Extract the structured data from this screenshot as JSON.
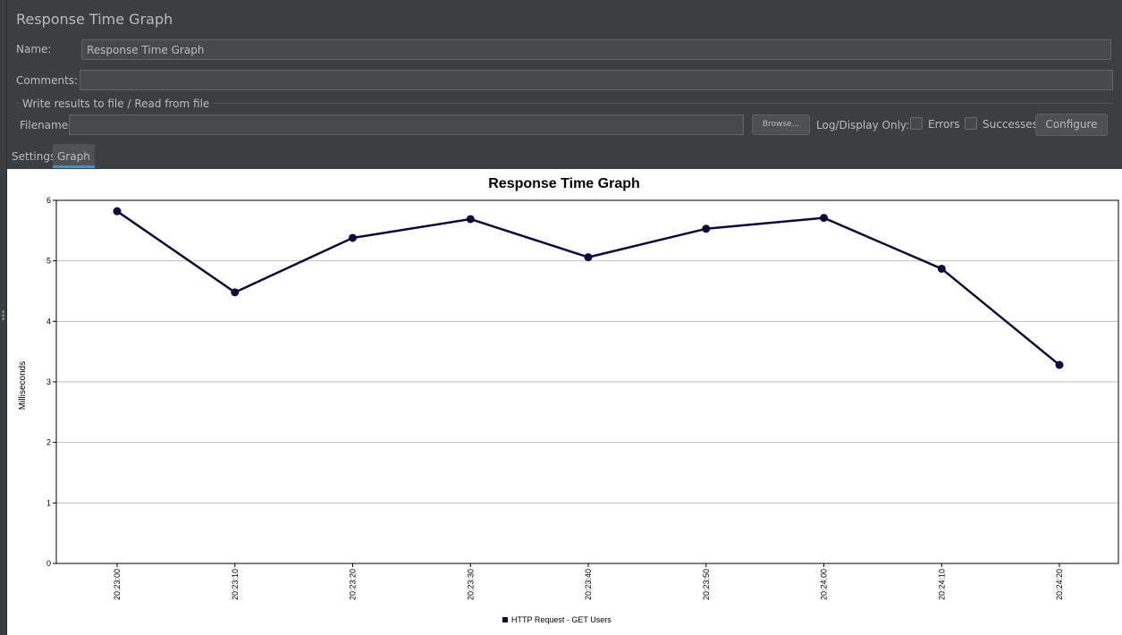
{
  "panel": {
    "title": "Response Time Graph",
    "name_label": "Name:",
    "name_value": "Response Time Graph",
    "comments_label": "Comments:",
    "comments_value": "",
    "file_group_title": "Write results to file / Read from file",
    "filename_label": "Filename",
    "filename_value": "",
    "browse_label": "Browse...",
    "log_display_label": "Log/Display Only:",
    "errors_label": "Errors",
    "successes_label": "Successes",
    "configure_label": "Configure"
  },
  "tabs": [
    {
      "label": "Settings",
      "active": false
    },
    {
      "label": "Graph",
      "active": true
    }
  ],
  "chart_data": {
    "type": "line",
    "title": "Response Time Graph",
    "xlabel": "",
    "ylabel": "Milliseconds",
    "ylim": [
      0,
      6
    ],
    "yticks": [
      "0",
      "1",
      "2",
      "3",
      "4",
      "5",
      "6"
    ],
    "categories": [
      "20:23:00",
      "20:23:10",
      "20:23:20",
      "20:23:30",
      "20:23:40",
      "20:23:50",
      "20:24:00",
      "20:24:10",
      "20:24:20"
    ],
    "series": [
      {
        "name": "HTTP Request - GET Users",
        "color": "#0d0a3a",
        "values": [
          5.82,
          4.48,
          5.38,
          5.69,
          5.06,
          5.53,
          5.71,
          4.87,
          3.28
        ]
      }
    ],
    "grid": true,
    "legend": "bottom-center"
  }
}
